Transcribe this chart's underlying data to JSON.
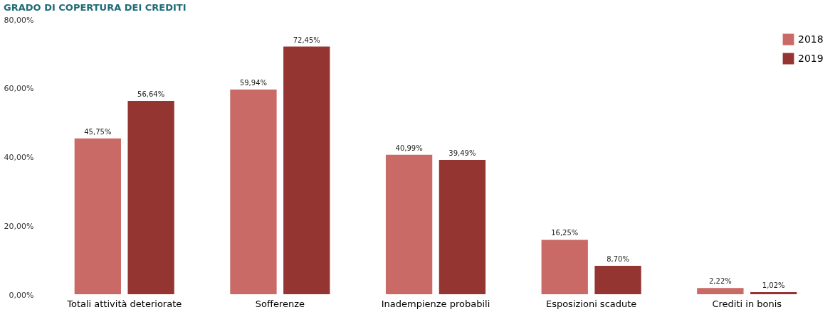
{
  "chart_data": {
    "type": "bar",
    "title": "GRADO DI COPERTURA DEI CREDITI",
    "categories": [
      "Totali attività deteriorate",
      "Sofferenze",
      "Inadempienze probabili",
      "Esposizioni scadute",
      "Crediti in bonis"
    ],
    "series": [
      {
        "name": "2018",
        "color": "#c96a66",
        "values": [
          45.75,
          59.94,
          40.99,
          16.25,
          2.22
        ],
        "value_labels": [
          "45,75%",
          "59,94%",
          "40,99%",
          "16,25%",
          "2,22%"
        ]
      },
      {
        "name": "2019",
        "color": "#943532",
        "values": [
          56.64,
          72.45,
          39.49,
          8.7,
          1.02
        ],
        "value_labels": [
          "56,64%",
          "72,45%",
          "39,49%",
          "8,70%",
          "1,02%"
        ]
      }
    ],
    "ylim": [
      0,
      80
    ],
    "yticks": [
      {
        "value": 0,
        "label": "0,00%"
      },
      {
        "value": 20,
        "label": "20,00%"
      },
      {
        "value": 40,
        "label": "40,00%"
      },
      {
        "value": 60,
        "label": "60,00%"
      },
      {
        "value": 80,
        "label": "80,00%"
      }
    ],
    "grid": false,
    "legend": "top right"
  }
}
